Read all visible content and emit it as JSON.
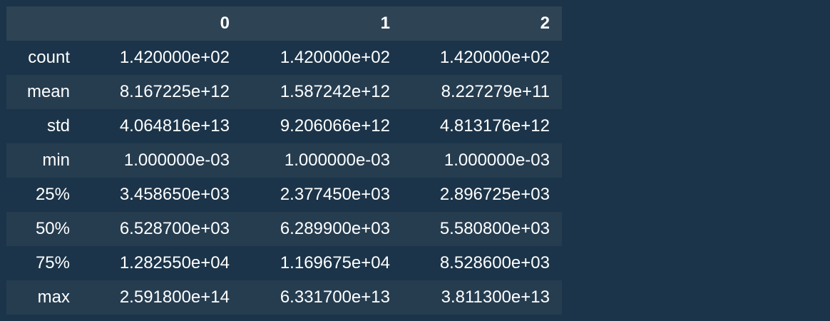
{
  "table": {
    "index_header": "",
    "columns": [
      "0",
      "1",
      "2"
    ],
    "rows": [
      {
        "label": "count",
        "values": [
          "1.420000e+02",
          "1.420000e+02",
          "1.420000e+02"
        ]
      },
      {
        "label": "mean",
        "values": [
          "8.167225e+12",
          "1.587242e+12",
          "8.227279e+11"
        ]
      },
      {
        "label": "std",
        "values": [
          "4.064816e+13",
          "9.206066e+12",
          "4.813176e+12"
        ]
      },
      {
        "label": "min",
        "values": [
          "1.000000e-03",
          "1.000000e-03",
          "1.000000e-03"
        ]
      },
      {
        "label": "25%",
        "values": [
          "3.458650e+03",
          "2.377450e+03",
          "2.896725e+03"
        ]
      },
      {
        "label": "50%",
        "values": [
          "6.528700e+03",
          "6.289900e+03",
          "5.580800e+03"
        ]
      },
      {
        "label": "75%",
        "values": [
          "1.282550e+04",
          "1.169675e+04",
          "8.528600e+03"
        ]
      },
      {
        "label": "max",
        "values": [
          "2.591800e+14",
          "6.331700e+13",
          "3.811300e+13"
        ]
      }
    ]
  },
  "colors": {
    "background": "#1b3449",
    "header_background": "#2e4455",
    "alt_row_background": "#263d50",
    "text": "#ffffff"
  }
}
